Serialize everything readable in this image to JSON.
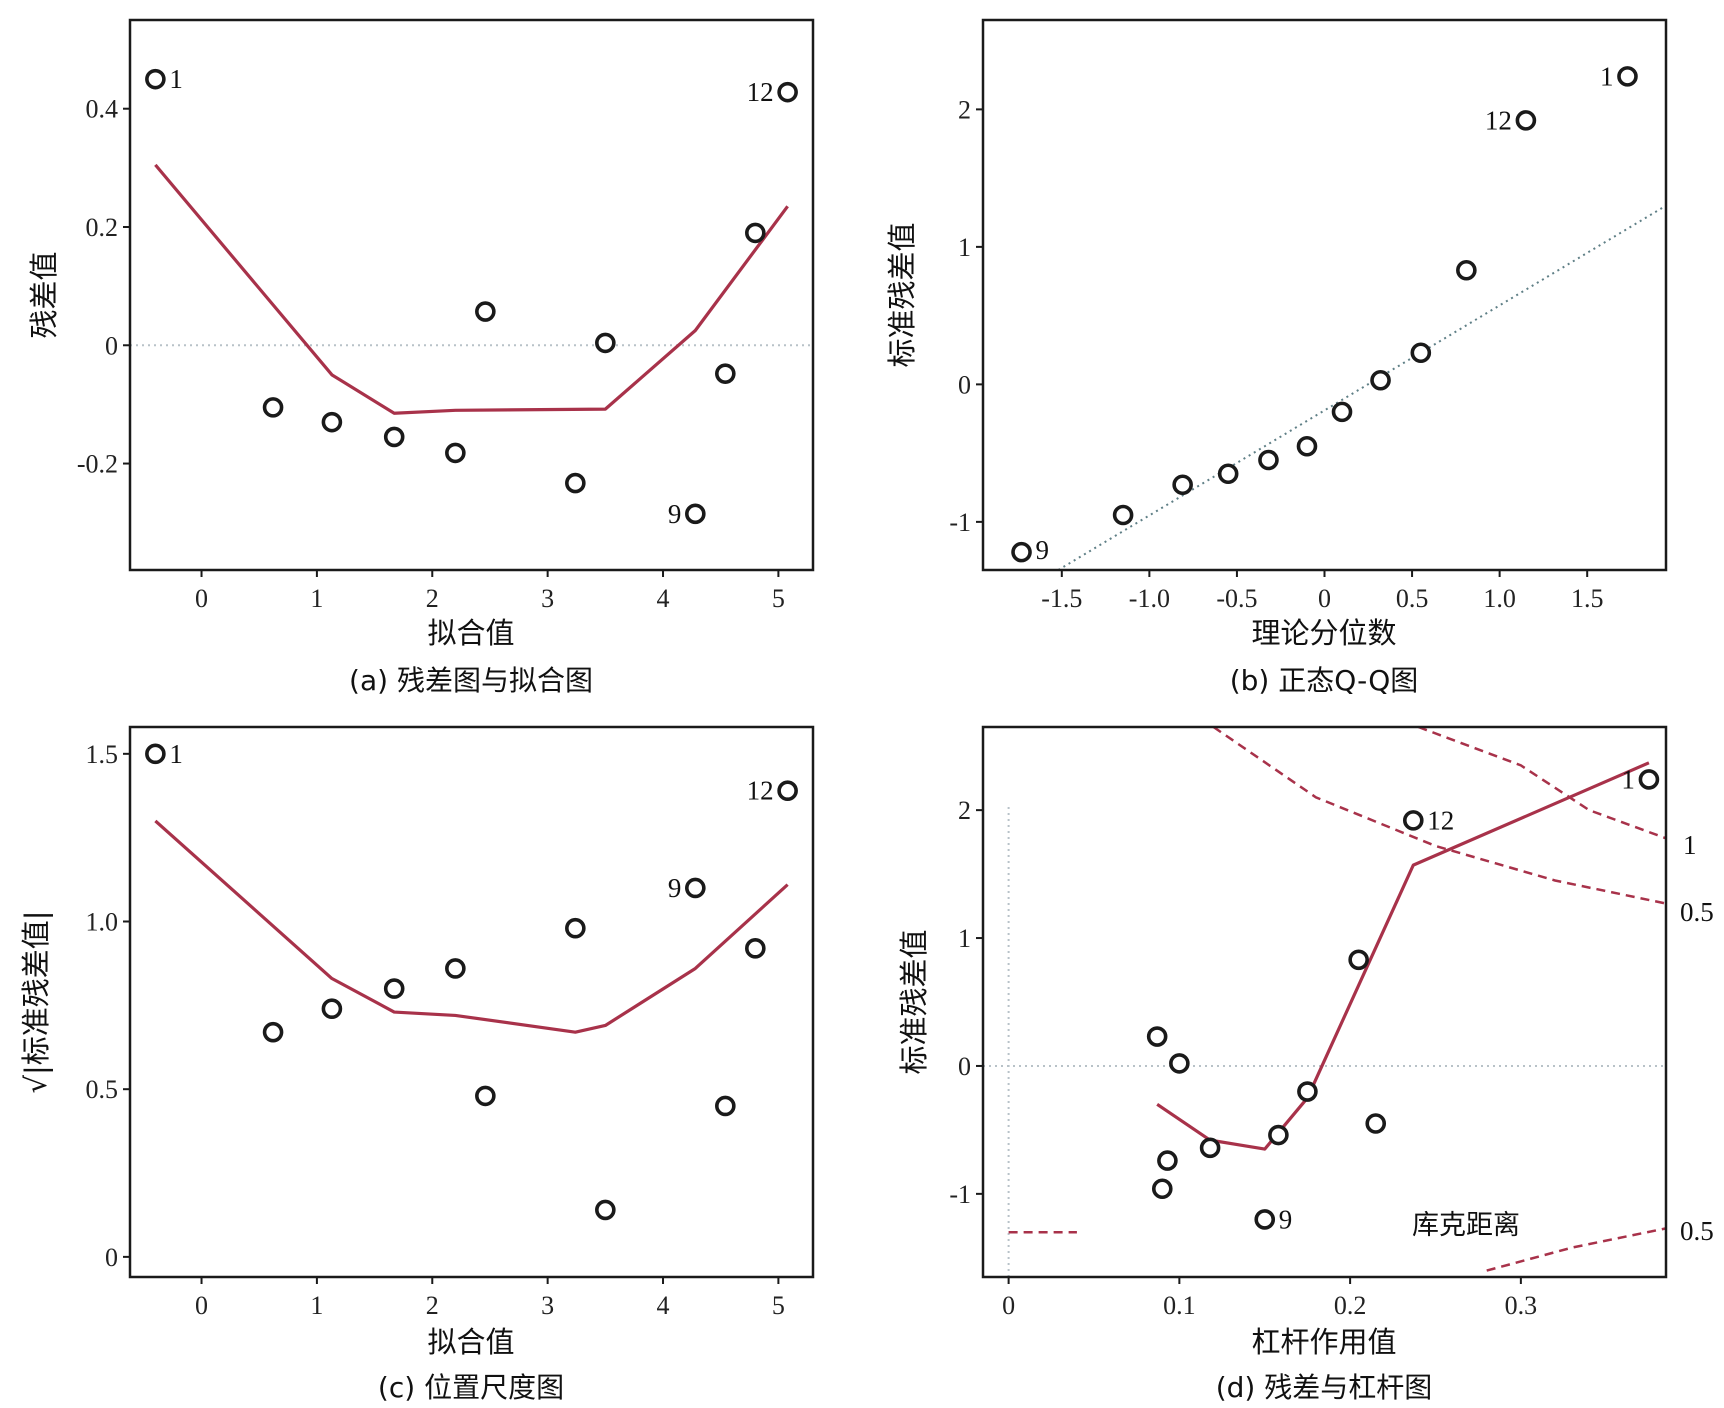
{
  "figure": {
    "colors": {
      "marker": "#1a1a1a",
      "smooth": "#a8324a",
      "reference": "#b8c2c8",
      "cook": "#a8324a"
    },
    "chart_data": [
      {
        "id": "a",
        "type": "scatter",
        "caption": "(a) 残差图与拟合图",
        "xlabel": "拟合值",
        "ylabel": "残差值",
        "xlim": [
          -0.62,
          5.3
        ],
        "ylim": [
          -0.38,
          0.55
        ],
        "xticks": [
          0,
          1,
          2,
          3,
          4,
          5
        ],
        "xtick_labels": [
          "0",
          "1",
          "2",
          "3",
          "4",
          "5"
        ],
        "yticks": [
          -0.2,
          0,
          0.2,
          0.4
        ],
        "ytick_labels": [
          "-0.2",
          "0",
          "0.2",
          "0.4"
        ],
        "reference_line": {
          "y": 0
        },
        "points": [
          {
            "x": -0.4,
            "y": 0.45,
            "label": "1"
          },
          {
            "x": 0.62,
            "y": -0.105,
            "label": ""
          },
          {
            "x": 1.13,
            "y": -0.13,
            "label": ""
          },
          {
            "x": 1.67,
            "y": -0.155,
            "label": ""
          },
          {
            "x": 2.2,
            "y": -0.182,
            "label": ""
          },
          {
            "x": 2.46,
            "y": 0.057,
            "label": ""
          },
          {
            "x": 3.24,
            "y": -0.233,
            "label": ""
          },
          {
            "x": 3.5,
            "y": 0.004,
            "label": ""
          },
          {
            "x": 4.28,
            "y": -0.285,
            "label": "9"
          },
          {
            "x": 4.54,
            "y": -0.048,
            "label": ""
          },
          {
            "x": 4.8,
            "y": 0.19,
            "label": ""
          },
          {
            "x": 5.08,
            "y": 0.428,
            "label": "12"
          }
        ],
        "smooth_line": [
          {
            "x": -0.4,
            "y": 0.305
          },
          {
            "x": 1.13,
            "y": -0.05
          },
          {
            "x": 1.67,
            "y": -0.115
          },
          {
            "x": 2.2,
            "y": -0.11
          },
          {
            "x": 3.5,
            "y": -0.108
          },
          {
            "x": 4.28,
            "y": 0.025
          },
          {
            "x": 5.08,
            "y": 0.235
          }
        ]
      },
      {
        "id": "b",
        "type": "scatter",
        "caption": "(b) 正态Q-Q图",
        "xlabel": "理论分位数",
        "ylabel": "标准残差值",
        "xlim": [
          -1.95,
          1.95
        ],
        "ylim": [
          -1.35,
          2.65
        ],
        "xticks": [
          -1.5,
          -1.0,
          -0.5,
          0,
          0.5,
          1.0,
          1.5
        ],
        "xtick_labels": [
          "-1.5",
          "-1.0",
          "-0.5",
          "0",
          "0.5",
          "1.0",
          "1.5"
        ],
        "yticks": [
          -1,
          0,
          1,
          2
        ],
        "ytick_labels": [
          "-1",
          "0",
          "1",
          "2"
        ],
        "reference_line": {
          "from": {
            "x": -1.52,
            "y": -1.35
          },
          "to": {
            "x": 1.95,
            "y": 1.3
          }
        },
        "points": [
          {
            "x": -1.73,
            "y": -1.22,
            "label": "9"
          },
          {
            "x": -1.15,
            "y": -0.95,
            "label": ""
          },
          {
            "x": -0.81,
            "y": -0.73,
            "label": ""
          },
          {
            "x": -0.55,
            "y": -0.65,
            "label": ""
          },
          {
            "x": -0.32,
            "y": -0.55,
            "label": ""
          },
          {
            "x": -0.1,
            "y": -0.45,
            "label": ""
          },
          {
            "x": 0.1,
            "y": -0.2,
            "label": ""
          },
          {
            "x": 0.32,
            "y": 0.03,
            "label": ""
          },
          {
            "x": 0.55,
            "y": 0.23,
            "label": ""
          },
          {
            "x": 0.81,
            "y": 0.83,
            "label": ""
          },
          {
            "x": 1.15,
            "y": 1.92,
            "label": "12"
          },
          {
            "x": 1.73,
            "y": 2.24,
            "label": "1"
          }
        ]
      },
      {
        "id": "c",
        "type": "scatter",
        "caption": "(c) 位置尺度图",
        "xlabel": "拟合值",
        "ylabel": "√|标准残差值|",
        "xlim": [
          -0.62,
          5.3
        ],
        "ylim": [
          -0.06,
          1.58
        ],
        "xticks": [
          0,
          1,
          2,
          3,
          4,
          5
        ],
        "xtick_labels": [
          "0",
          "1",
          "2",
          "3",
          "4",
          "5"
        ],
        "yticks": [
          0,
          0.5,
          1.0,
          1.5
        ],
        "ytick_labels": [
          "0",
          "0.5",
          "1.0",
          "1.5"
        ],
        "points": [
          {
            "x": -0.4,
            "y": 1.5,
            "label": "1"
          },
          {
            "x": 0.62,
            "y": 0.67,
            "label": ""
          },
          {
            "x": 1.13,
            "y": 0.74,
            "label": ""
          },
          {
            "x": 1.67,
            "y": 0.8,
            "label": ""
          },
          {
            "x": 2.2,
            "y": 0.86,
            "label": ""
          },
          {
            "x": 2.46,
            "y": 0.48,
            "label": ""
          },
          {
            "x": 3.24,
            "y": 0.98,
            "label": ""
          },
          {
            "x": 3.5,
            "y": 0.14,
            "label": ""
          },
          {
            "x": 4.28,
            "y": 1.1,
            "label": "9"
          },
          {
            "x": 4.54,
            "y": 0.45,
            "label": ""
          },
          {
            "x": 4.8,
            "y": 0.92,
            "label": ""
          },
          {
            "x": 5.08,
            "y": 1.39,
            "label": "12"
          }
        ],
        "smooth_line": [
          {
            "x": -0.4,
            "y": 1.3
          },
          {
            "x": 1.13,
            "y": 0.83
          },
          {
            "x": 1.67,
            "y": 0.73
          },
          {
            "x": 2.2,
            "y": 0.72
          },
          {
            "x": 3.24,
            "y": 0.67
          },
          {
            "x": 3.5,
            "y": 0.69
          },
          {
            "x": 4.28,
            "y": 0.86
          },
          {
            "x": 5.08,
            "y": 1.11
          }
        ]
      },
      {
        "id": "d",
        "type": "scatter",
        "caption": "(d) 残差与杠杆图",
        "xlabel": "杠杆作用值",
        "ylabel": "标准残差值",
        "xlim": [
          -0.015,
          0.385
        ],
        "ylim": [
          -1.65,
          2.65
        ],
        "xticks": [
          0,
          0.1,
          0.2,
          0.3
        ],
        "xtick_labels": [
          "0",
          "0.1",
          "0.2",
          "0.3"
        ],
        "yticks": [
          -1,
          0,
          1,
          2
        ],
        "ytick_labels": [
          "-1",
          "0",
          "1",
          "2"
        ],
        "reference_line": {
          "y": 0
        },
        "legend_text": "库克距离",
        "contour_labels": {
          "upper_1": "1",
          "upper_05": "0.5",
          "lower_05": "0.5"
        },
        "points": [
          {
            "x": 0.087,
            "y": 0.23,
            "label": ""
          },
          {
            "x": 0.1,
            "y": 0.02,
            "label": ""
          },
          {
            "x": 0.09,
            "y": -0.96,
            "label": ""
          },
          {
            "x": 0.093,
            "y": -0.74,
            "label": ""
          },
          {
            "x": 0.118,
            "y": -0.64,
            "label": ""
          },
          {
            "x": 0.15,
            "y": -1.2,
            "label": "9"
          },
          {
            "x": 0.158,
            "y": -0.54,
            "label": ""
          },
          {
            "x": 0.175,
            "y": -0.2,
            "label": ""
          },
          {
            "x": 0.205,
            "y": 0.83,
            "label": ""
          },
          {
            "x": 0.215,
            "y": -0.45,
            "label": ""
          },
          {
            "x": 0.237,
            "y": 1.92,
            "label": "12"
          },
          {
            "x": 0.375,
            "y": 2.24,
            "label": "1"
          }
        ],
        "smooth_line": [
          {
            "x": 0.087,
            "y": -0.3
          },
          {
            "x": 0.118,
            "y": -0.58
          },
          {
            "x": 0.15,
            "y": -0.65
          },
          {
            "x": 0.175,
            "y": -0.25
          },
          {
            "x": 0.237,
            "y": 1.57
          },
          {
            "x": 0.375,
            "y": 2.37
          }
        ],
        "cook_contours": [
          {
            "level": 1,
            "points": [
              [
                0.24,
                2.65
              ],
              [
                0.3,
                2.35
              ],
              [
                0.34,
                2.0
              ],
              [
                0.385,
                1.78
              ]
            ]
          },
          {
            "level": 0.5,
            "points": [
              [
                0.12,
                2.65
              ],
              [
                0.18,
                2.1
              ],
              [
                0.25,
                1.72
              ],
              [
                0.32,
                1.45
              ],
              [
                0.385,
                1.27
              ]
            ]
          },
          {
            "level": 0.5,
            "points": [
              [
                0.0,
                -1.3
              ],
              [
                0.04,
                -1.3
              ]
            ]
          },
          {
            "level": 0.5,
            "points": [
              [
                0.28,
                -1.6
              ],
              [
                0.33,
                -1.42
              ],
              [
                0.385,
                -1.27
              ]
            ]
          }
        ]
      }
    ]
  }
}
